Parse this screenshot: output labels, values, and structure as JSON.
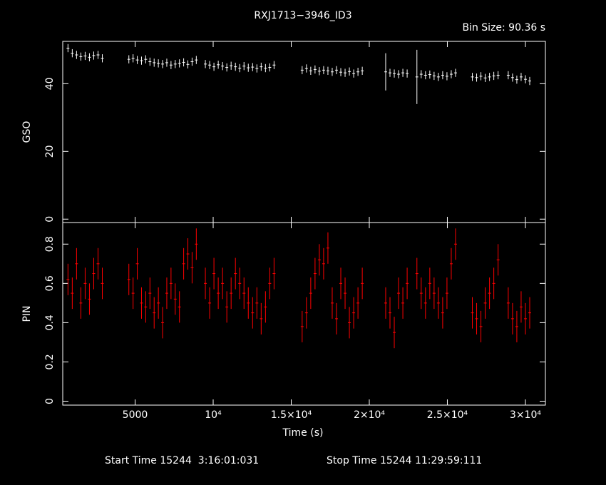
{
  "title": "RXJ1713−3946_ID3",
  "subtitle": "Bin Size: 90.36 s",
  "x_label": "Time (s)",
  "footer": {
    "start": "Start Time 15244  3:16:01:031",
    "stop": "Stop Time 15244 11:29:59:111"
  },
  "chart_data": [
    {
      "type": "errorbar",
      "y_label": "GSO",
      "color": "#ffffff",
      "xlim": [
        365,
        31280
      ],
      "ylim": [
        -1,
        52.5
      ],
      "yticks": [
        0,
        20,
        40
      ],
      "xticks": [
        5000,
        10000,
        15000,
        20000,
        25000,
        30000
      ],
      "x": [
        700,
        975,
        1250,
        1525,
        1800,
        2075,
        2350,
        2625,
        2900,
        4600,
        4870,
        5140,
        5410,
        5680,
        5950,
        6220,
        6490,
        6760,
        7030,
        7300,
        7570,
        7840,
        8110,
        8380,
        8650,
        8920,
        9500,
        9775,
        10050,
        10325,
        10600,
        10875,
        11150,
        11425,
        11700,
        11975,
        12250,
        12525,
        12800,
        13075,
        13350,
        13625,
        13900,
        15700,
        15975,
        16250,
        16525,
        16800,
        17075,
        17350,
        17625,
        17900,
        18175,
        18450,
        18725,
        19000,
        19275,
        19550,
        21050,
        21325,
        21600,
        21875,
        22150,
        22425,
        23050,
        23325,
        23600,
        23875,
        24150,
        24425,
        24700,
        24975,
        25250,
        25525,
        26600,
        26875,
        27150,
        27425,
        27700,
        27975,
        28250,
        28900,
        29175,
        29450,
        29725,
        30000,
        30275
      ],
      "values": [
        50.5,
        49,
        48.5,
        48,
        48.2,
        47.8,
        48.3,
        48.5,
        47.5,
        47.2,
        47.5,
        47,
        46.8,
        47.2,
        46.5,
        46.2,
        46,
        45.8,
        46.2,
        45.5,
        45.8,
        46,
        46.3,
        45.7,
        46.5,
        47,
        45.8,
        45.5,
        45,
        45.6,
        45.2,
        44.8,
        45.3,
        45,
        44.6,
        45.2,
        44.7,
        44.9,
        44.5,
        45,
        44.6,
        44.8,
        45.5,
        44,
        44.5,
        43.8,
        44.2,
        43.7,
        44,
        43.8,
        43.5,
        44,
        43.4,
        43.2,
        43.6,
        43,
        43.5,
        43.8,
        43.5,
        43.2,
        43,
        42.8,
        43.2,
        43,
        42,
        42.8,
        42.5,
        42.7,
        42.3,
        42,
        42.5,
        42.2,
        42.8,
        43.2,
        42,
        41.8,
        42.2,
        41.7,
        42,
        42.3,
        42.5,
        42.5,
        41.8,
        41.2,
        42,
        41.3,
        40.8
      ],
      "errors": [
        1.2,
        1.2,
        1.2,
        1.2,
        1.2,
        1.2,
        1.2,
        1.2,
        1.2,
        1.2,
        1.2,
        1.2,
        1.2,
        1.2,
        1.2,
        1.2,
        1.2,
        1.2,
        1.2,
        1.2,
        1.2,
        1.2,
        1.2,
        1.2,
        1.2,
        1.2,
        1.2,
        1.2,
        1.2,
        1.2,
        1.2,
        1.2,
        1.2,
        1.2,
        1.2,
        1.2,
        1.2,
        1.2,
        1.2,
        1.2,
        1.2,
        1.2,
        1.2,
        1.2,
        1.2,
        1.2,
        1.2,
        1.2,
        1.2,
        1.2,
        1.2,
        1.2,
        1.2,
        1.2,
        1.2,
        1.2,
        1.2,
        1.2,
        5.5,
        1.2,
        1.2,
        1.2,
        1.2,
        1.2,
        8,
        1.2,
        1.2,
        1.2,
        1.2,
        1.2,
        1.2,
        1.2,
        1.2,
        1.2,
        1.2,
        1.2,
        1.2,
        1.2,
        1.2,
        1.2,
        1.2,
        1.2,
        1.2,
        1.2,
        1.2,
        1.2,
        1.2
      ]
    },
    {
      "type": "errorbar",
      "y_label": "PIN",
      "color": "#ff0000",
      "xlim": [
        365,
        31280
      ],
      "ylim": [
        -0.02,
        0.91
      ],
      "yticks": [
        0,
        0.2,
        0.4,
        0.6,
        0.8
      ],
      "xticks": [
        5000,
        {
          "value": 10000,
          "label": "10⁴"
        },
        {
          "value": 15000,
          "label": "1.5×10⁴"
        },
        {
          "value": 20000,
          "label": "2×10⁴"
        },
        {
          "value": 25000,
          "label": "2.5×10⁴"
        },
        {
          "value": 30000,
          "label": "3×10⁴"
        }
      ],
      "x": [
        700,
        975,
        1250,
        1525,
        1800,
        2075,
        2350,
        2625,
        2900,
        4600,
        4870,
        5140,
        5410,
        5680,
        5950,
        6220,
        6490,
        6760,
        7030,
        7300,
        7570,
        7840,
        8110,
        8380,
        8650,
        8920,
        9500,
        9775,
        10050,
        10325,
        10600,
        10875,
        11150,
        11425,
        11700,
        11975,
        12250,
        12525,
        12800,
        13075,
        13350,
        13625,
        13900,
        15700,
        15975,
        16250,
        16525,
        16800,
        17075,
        17350,
        17625,
        17900,
        18175,
        18450,
        18725,
        19000,
        19275,
        19550,
        21050,
        21325,
        21600,
        21875,
        22150,
        22425,
        23050,
        23325,
        23600,
        23875,
        24150,
        24425,
        24700,
        24975,
        25250,
        25525,
        26600,
        26875,
        27150,
        27425,
        27700,
        27975,
        28250,
        28900,
        29175,
        29450,
        29725,
        30000,
        30275
      ],
      "values": [
        0.62,
        0.55,
        0.7,
        0.5,
        0.6,
        0.52,
        0.65,
        0.7,
        0.6,
        0.62,
        0.55,
        0.7,
        0.5,
        0.48,
        0.55,
        0.45,
        0.5,
        0.4,
        0.55,
        0.6,
        0.52,
        0.48,
        0.7,
        0.75,
        0.68,
        0.8,
        0.6,
        0.5,
        0.65,
        0.55,
        0.6,
        0.48,
        0.55,
        0.65,
        0.6,
        0.55,
        0.5,
        0.45,
        0.5,
        0.42,
        0.48,
        0.6,
        0.65,
        0.38,
        0.45,
        0.55,
        0.65,
        0.72,
        0.7,
        0.78,
        0.5,
        0.42,
        0.6,
        0.55,
        0.4,
        0.45,
        0.5,
        0.6,
        0.5,
        0.45,
        0.35,
        0.55,
        0.5,
        0.6,
        0.65,
        0.55,
        0.5,
        0.6,
        0.55,
        0.5,
        0.45,
        0.55,
        0.7,
        0.8,
        0.45,
        0.42,
        0.38,
        0.5,
        0.55,
        0.6,
        0.72,
        0.5,
        0.42,
        0.38,
        0.48,
        0.42,
        0.45
      ],
      "errors": [
        0.08,
        0.08,
        0.08,
        0.08,
        0.08,
        0.08,
        0.08,
        0.08,
        0.08,
        0.08,
        0.08,
        0.08,
        0.08,
        0.08,
        0.08,
        0.08,
        0.08,
        0.08,
        0.08,
        0.08,
        0.08,
        0.08,
        0.08,
        0.08,
        0.08,
        0.08,
        0.08,
        0.08,
        0.08,
        0.08,
        0.08,
        0.08,
        0.08,
        0.08,
        0.08,
        0.08,
        0.08,
        0.08,
        0.08,
        0.08,
        0.08,
        0.08,
        0.08,
        0.08,
        0.08,
        0.08,
        0.08,
        0.08,
        0.08,
        0.08,
        0.08,
        0.08,
        0.08,
        0.08,
        0.08,
        0.08,
        0.08,
        0.08,
        0.08,
        0.08,
        0.08,
        0.08,
        0.08,
        0.08,
        0.08,
        0.08,
        0.08,
        0.08,
        0.08,
        0.08,
        0.08,
        0.08,
        0.08,
        0.08,
        0.08,
        0.08,
        0.08,
        0.08,
        0.08,
        0.08,
        0.08,
        0.08,
        0.08,
        0.08,
        0.08,
        0.08,
        0.08
      ]
    }
  ]
}
